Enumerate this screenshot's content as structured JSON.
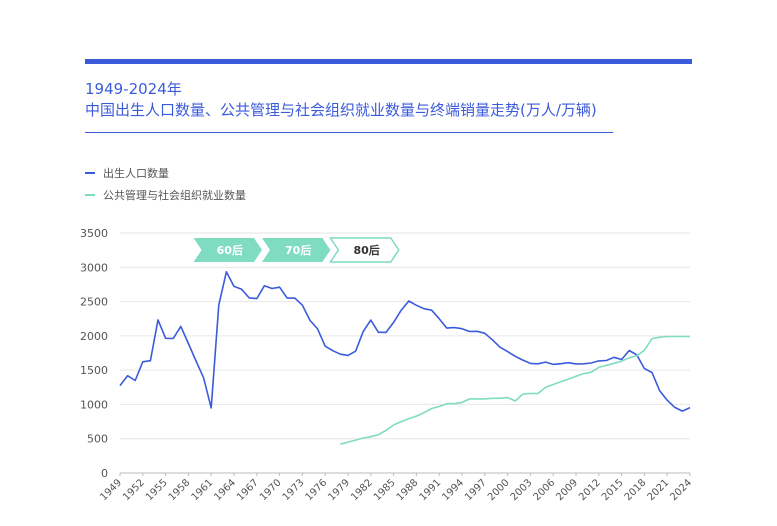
{
  "title": {
    "line1": "1949-2024年",
    "line2": "中国出生人口数量、公共管理与社会组织就业数量与终端销量走势(万人/万辆)"
  },
  "colors": {
    "accent": "#3b5bdb",
    "births": "#3b5bdb",
    "employment": "#7fdcc0",
    "gen_fill": "#7fdcc0",
    "gen_text": "#ffffff",
    "gen_outline_text": "#333333",
    "grid": "#e6e6e6",
    "axis_text": "#555555"
  },
  "chart_data": {
    "type": "line",
    "title": "中国出生人口数量、公共管理与社会组织就业数量与终端销量走势(万人/万辆)",
    "ylim": [
      0,
      3500
    ],
    "yticks": [
      0,
      500,
      1000,
      1500,
      2000,
      2500,
      3000,
      3500
    ],
    "xlim": [
      1949,
      2024
    ],
    "xticks": [
      1949,
      1952,
      1955,
      1958,
      1961,
      1964,
      1967,
      1970,
      1973,
      1976,
      1979,
      1982,
      1985,
      1988,
      1991,
      1994,
      1997,
      2000,
      2003,
      2006,
      2009,
      2012,
      2015,
      2018,
      2021,
      2024
    ],
    "grid": true,
    "legend_position": "top-left",
    "series": [
      {
        "name": "出生人口数量",
        "key": "births",
        "x": [
          1949,
          1950,
          1951,
          1952,
          1953,
          1954,
          1955,
          1956,
          1957,
          1958,
          1959,
          1960,
          1961,
          1962,
          1963,
          1964,
          1965,
          1966,
          1967,
          1968,
          1969,
          1970,
          1971,
          1972,
          1973,
          1974,
          1975,
          1976,
          1977,
          1978,
          1979,
          1980,
          1981,
          1982,
          1983,
          1984,
          1985,
          1986,
          1987,
          1988,
          1989,
          1990,
          1991,
          1992,
          1993,
          1994,
          1995,
          1996,
          1997,
          1998,
          1999,
          2000,
          2001,
          2002,
          2003,
          2004,
          2005,
          2006,
          2007,
          2008,
          2009,
          2010,
          2011,
          2012,
          2013,
          2014,
          2015,
          2016,
          2017,
          2018,
          2019,
          2020,
          2021,
          2022,
          2023,
          2024
        ],
        "values": [
          1275,
          1419,
          1349,
          1622,
          1637,
          2232,
          1965,
          1961,
          2138,
          1889,
          1635,
          1389,
          949,
          2451,
          2934,
          2721,
          2679,
          2554,
          2543,
          2731,
          2690,
          2710,
          2551,
          2550,
          2447,
          2226,
          2102,
          1849,
          1783,
          1733,
          1715,
          1776,
          2064,
          2230,
          2052,
          2050,
          2196,
          2374,
          2508,
          2445,
          2396,
          2374,
          2250,
          2113,
          2120,
          2104,
          2063,
          2067,
          2038,
          1942,
          1834,
          1771,
          1702,
          1647,
          1599,
          1593,
          1617,
          1584,
          1594,
          1608,
          1591,
          1592,
          1604,
          1635,
          1640,
          1687,
          1655,
          1786,
          1723,
          1523,
          1465,
          1202,
          1062,
          956,
          902,
          954
        ]
      },
      {
        "name": "公共管理与社会组织就业数量",
        "key": "employment",
        "x": [
          1978,
          1979,
          1980,
          1981,
          1982,
          1983,
          1984,
          1985,
          1986,
          1987,
          1988,
          1989,
          1990,
          1991,
          1992,
          1993,
          1994,
          1995,
          1996,
          1997,
          1998,
          1999,
          2000,
          2001,
          2002,
          2003,
          2004,
          2005,
          2006,
          2007,
          2008,
          2009,
          2010,
          2011,
          2012,
          2013,
          2014,
          2015,
          2016,
          2017,
          2018,
          2019,
          2020,
          2021,
          2022,
          2023,
          2024
        ],
        "values": [
          420,
          450,
          480,
          510,
          530,
          560,
          620,
          700,
          750,
          790,
          830,
          880,
          940,
          970,
          1010,
          1010,
          1030,
          1080,
          1080,
          1080,
          1090,
          1090,
          1100,
          1050,
          1150,
          1160,
          1160,
          1250,
          1290,
          1330,
          1370,
          1410,
          1450,
          1470,
          1540,
          1570,
          1600,
          1630,
          1680,
          1710,
          1790,
          1960,
          1980,
          1990,
          1990,
          1990,
          1990
        ]
      }
    ],
    "generations": [
      {
        "label": "60后",
        "start": 1960,
        "end": 1969,
        "style": "filled"
      },
      {
        "label": "70后",
        "start": 1969,
        "end": 1978,
        "style": "filled"
      },
      {
        "label": "80后",
        "start": 1978,
        "end": 1987,
        "style": "outline"
      }
    ]
  }
}
